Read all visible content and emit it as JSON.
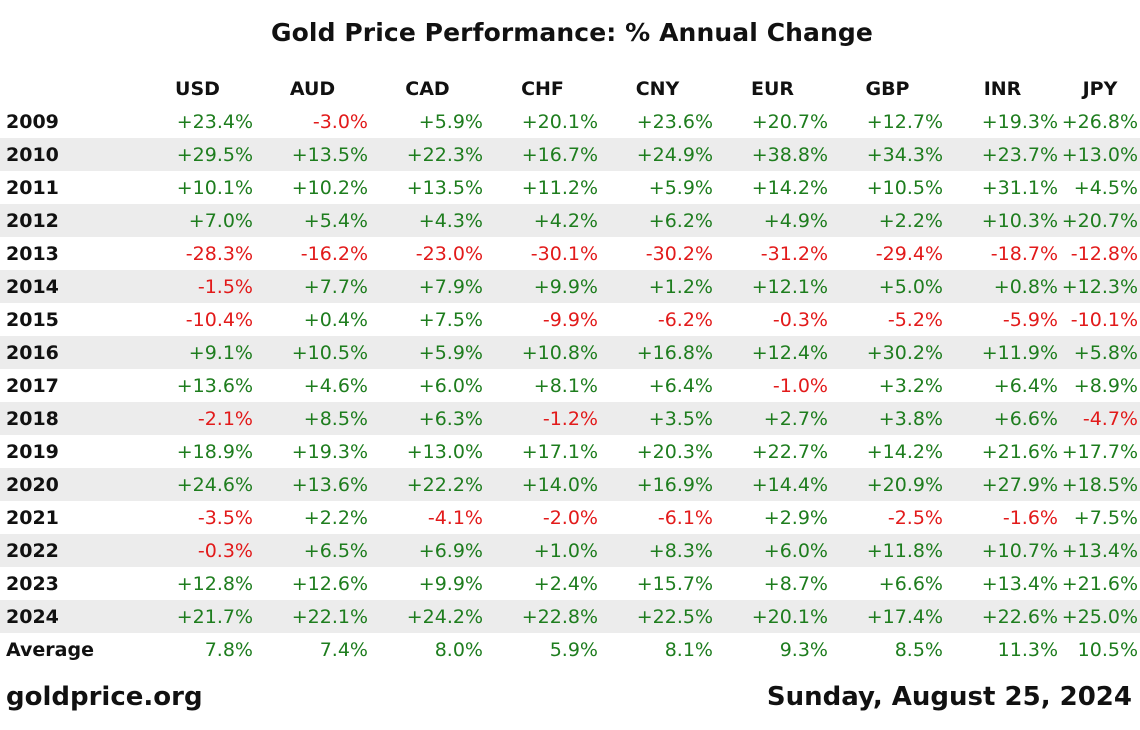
{
  "title": "Gold Price Performance: % Annual Change",
  "footer": {
    "site": "goldprice.org",
    "date": "Sunday, August 25, 2024"
  },
  "colors": {
    "positive": "#1e7d1e",
    "negative": "#e21a1a",
    "stripe": "#ececec"
  },
  "chart_data": {
    "type": "table",
    "title": "Gold Price Performance: % Annual Change",
    "columns": [
      "USD",
      "AUD",
      "CAD",
      "CHF",
      "CNY",
      "EUR",
      "GBP",
      "INR",
      "JPY"
    ],
    "rows": [
      {
        "label": "2009",
        "values": [
          "+23.4%",
          "-3.0%",
          "+5.9%",
          "+20.1%",
          "+23.6%",
          "+20.7%",
          "+12.7%",
          "+19.3%",
          "+26.8%"
        ]
      },
      {
        "label": "2010",
        "values": [
          "+29.5%",
          "+13.5%",
          "+22.3%",
          "+16.7%",
          "+24.9%",
          "+38.8%",
          "+34.3%",
          "+23.7%",
          "+13.0%"
        ]
      },
      {
        "label": "2011",
        "values": [
          "+10.1%",
          "+10.2%",
          "+13.5%",
          "+11.2%",
          "+5.9%",
          "+14.2%",
          "+10.5%",
          "+31.1%",
          "+4.5%"
        ]
      },
      {
        "label": "2012",
        "values": [
          "+7.0%",
          "+5.4%",
          "+4.3%",
          "+4.2%",
          "+6.2%",
          "+4.9%",
          "+2.2%",
          "+10.3%",
          "+20.7%"
        ]
      },
      {
        "label": "2013",
        "values": [
          "-28.3%",
          "-16.2%",
          "-23.0%",
          "-30.1%",
          "-30.2%",
          "-31.2%",
          "-29.4%",
          "-18.7%",
          "-12.8%"
        ]
      },
      {
        "label": "2014",
        "values": [
          "-1.5%",
          "+7.7%",
          "+7.9%",
          "+9.9%",
          "+1.2%",
          "+12.1%",
          "+5.0%",
          "+0.8%",
          "+12.3%"
        ]
      },
      {
        "label": "2015",
        "values": [
          "-10.4%",
          "+0.4%",
          "+7.5%",
          "-9.9%",
          "-6.2%",
          "-0.3%",
          "-5.2%",
          "-5.9%",
          "-10.1%"
        ]
      },
      {
        "label": "2016",
        "values": [
          "+9.1%",
          "+10.5%",
          "+5.9%",
          "+10.8%",
          "+16.8%",
          "+12.4%",
          "+30.2%",
          "+11.9%",
          "+5.8%"
        ]
      },
      {
        "label": "2017",
        "values": [
          "+13.6%",
          "+4.6%",
          "+6.0%",
          "+8.1%",
          "+6.4%",
          "-1.0%",
          "+3.2%",
          "+6.4%",
          "+8.9%"
        ]
      },
      {
        "label": "2018",
        "values": [
          "-2.1%",
          "+8.5%",
          "+6.3%",
          "-1.2%",
          "+3.5%",
          "+2.7%",
          "+3.8%",
          "+6.6%",
          "-4.7%"
        ]
      },
      {
        "label": "2019",
        "values": [
          "+18.9%",
          "+19.3%",
          "+13.0%",
          "+17.1%",
          "+20.3%",
          "+22.7%",
          "+14.2%",
          "+21.6%",
          "+17.7%"
        ]
      },
      {
        "label": "2020",
        "values": [
          "+24.6%",
          "+13.6%",
          "+22.2%",
          "+14.0%",
          "+16.9%",
          "+14.4%",
          "+20.9%",
          "+27.9%",
          "+18.5%"
        ]
      },
      {
        "label": "2021",
        "values": [
          "-3.5%",
          "+2.2%",
          "-4.1%",
          "-2.0%",
          "-6.1%",
          "+2.9%",
          "-2.5%",
          "-1.6%",
          "+7.5%"
        ]
      },
      {
        "label": "2022",
        "values": [
          "-0.3%",
          "+6.5%",
          "+6.9%",
          "+1.0%",
          "+8.3%",
          "+6.0%",
          "+11.8%",
          "+10.7%",
          "+13.4%"
        ]
      },
      {
        "label": "2023",
        "values": [
          "+12.8%",
          "+12.6%",
          "+9.9%",
          "+2.4%",
          "+15.7%",
          "+8.7%",
          "+6.6%",
          "+13.4%",
          "+21.6%"
        ]
      },
      {
        "label": "2024",
        "values": [
          "+21.7%",
          "+22.1%",
          "+24.2%",
          "+22.8%",
          "+22.5%",
          "+20.1%",
          "+17.4%",
          "+22.6%",
          "+25.0%"
        ]
      },
      {
        "label": "Average",
        "values": [
          "7.8%",
          "7.4%",
          "8.0%",
          "5.9%",
          "8.1%",
          "9.3%",
          "8.5%",
          "11.3%",
          "10.5%"
        ]
      }
    ]
  }
}
